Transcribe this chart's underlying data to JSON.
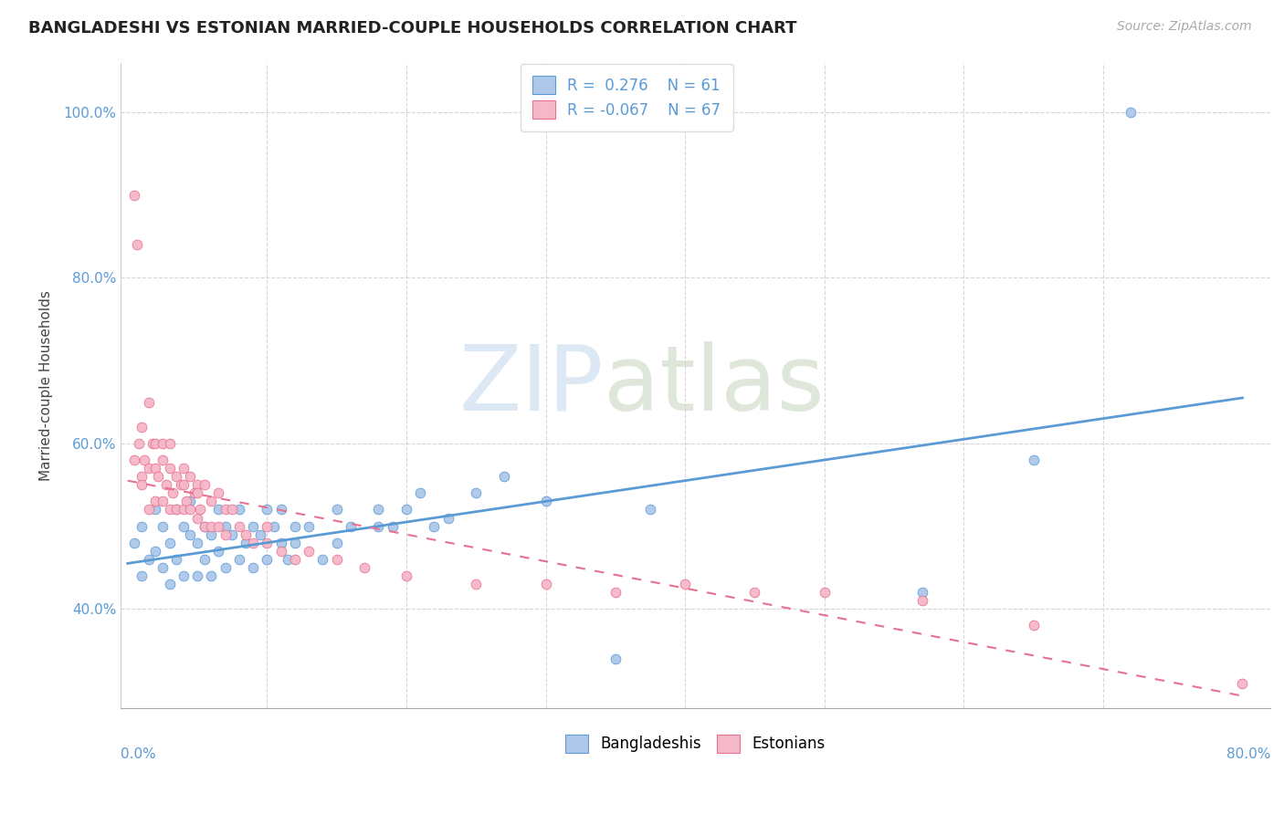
{
  "title": "BANGLADESHI VS ESTONIAN MARRIED-COUPLE HOUSEHOLDS CORRELATION CHART",
  "source": "Source: ZipAtlas.com",
  "ylabel": "Married-couple Households",
  "legend_label1": "Bangladeshis",
  "legend_label2": "Estonians",
  "R1": 0.276,
  "N1": 61,
  "R2": -0.067,
  "N2": 67,
  "color1": "#adc8e8",
  "color2": "#f5b8c8",
  "line_color1": "#5b9bd5",
  "line_color2": "#e87090",
  "watermark1": "ZIP",
  "watermark2": "atlas",
  "bg_color": "#ffffff",
  "ytick_labels": [
    "40.0%",
    "60.0%",
    "80.0%",
    "100.0%"
  ],
  "ytick_values": [
    0.4,
    0.6,
    0.8,
    1.0
  ],
  "xlim": [
    -0.005,
    0.82
  ],
  "ylim": [
    0.28,
    1.06
  ],
  "blue_trend_x": [
    0.0,
    0.8
  ],
  "blue_trend_y": [
    0.455,
    0.655
  ],
  "pink_trend_x": [
    0.0,
    0.8
  ],
  "pink_trend_y": [
    0.555,
    0.295
  ],
  "bd_x": [
    0.005,
    0.01,
    0.01,
    0.015,
    0.02,
    0.02,
    0.025,
    0.025,
    0.03,
    0.03,
    0.035,
    0.035,
    0.04,
    0.04,
    0.045,
    0.045,
    0.05,
    0.05,
    0.055,
    0.055,
    0.06,
    0.06,
    0.065,
    0.065,
    0.07,
    0.07,
    0.075,
    0.08,
    0.08,
    0.085,
    0.09,
    0.09,
    0.095,
    0.1,
    0.1,
    0.105,
    0.11,
    0.11,
    0.115,
    0.12,
    0.12,
    0.13,
    0.14,
    0.15,
    0.15,
    0.16,
    0.18,
    0.18,
    0.19,
    0.2,
    0.21,
    0.22,
    0.23,
    0.25,
    0.27,
    0.3,
    0.35,
    0.375,
    0.57,
    0.65,
    0.72
  ],
  "bd_y": [
    0.48,
    0.5,
    0.44,
    0.46,
    0.52,
    0.47,
    0.5,
    0.45,
    0.48,
    0.43,
    0.52,
    0.46,
    0.5,
    0.44,
    0.49,
    0.53,
    0.48,
    0.44,
    0.5,
    0.46,
    0.49,
    0.44,
    0.52,
    0.47,
    0.5,
    0.45,
    0.49,
    0.46,
    0.52,
    0.48,
    0.5,
    0.45,
    0.49,
    0.46,
    0.52,
    0.5,
    0.48,
    0.52,
    0.46,
    0.5,
    0.48,
    0.5,
    0.46,
    0.52,
    0.48,
    0.5,
    0.5,
    0.52,
    0.5,
    0.52,
    0.54,
    0.5,
    0.51,
    0.54,
    0.56,
    0.53,
    0.34,
    0.52,
    0.42,
    0.58,
    1.0
  ],
  "et_x": [
    0.005,
    0.005,
    0.007,
    0.008,
    0.01,
    0.01,
    0.01,
    0.012,
    0.015,
    0.015,
    0.015,
    0.018,
    0.02,
    0.02,
    0.02,
    0.022,
    0.025,
    0.025,
    0.025,
    0.028,
    0.03,
    0.03,
    0.03,
    0.032,
    0.035,
    0.035,
    0.038,
    0.04,
    0.04,
    0.04,
    0.042,
    0.045,
    0.045,
    0.048,
    0.05,
    0.05,
    0.05,
    0.052,
    0.055,
    0.055,
    0.06,
    0.06,
    0.065,
    0.065,
    0.07,
    0.07,
    0.075,
    0.08,
    0.085,
    0.09,
    0.1,
    0.1,
    0.11,
    0.12,
    0.13,
    0.15,
    0.17,
    0.2,
    0.25,
    0.3,
    0.35,
    0.4,
    0.45,
    0.5,
    0.57,
    0.65,
    0.8
  ],
  "et_y": [
    0.9,
    0.58,
    0.84,
    0.6,
    0.56,
    0.62,
    0.55,
    0.58,
    0.65,
    0.57,
    0.52,
    0.6,
    0.57,
    0.53,
    0.6,
    0.56,
    0.58,
    0.53,
    0.6,
    0.55,
    0.57,
    0.52,
    0.6,
    0.54,
    0.56,
    0.52,
    0.55,
    0.57,
    0.52,
    0.55,
    0.53,
    0.56,
    0.52,
    0.54,
    0.55,
    0.51,
    0.54,
    0.52,
    0.55,
    0.5,
    0.53,
    0.5,
    0.54,
    0.5,
    0.52,
    0.49,
    0.52,
    0.5,
    0.49,
    0.48,
    0.48,
    0.5,
    0.47,
    0.46,
    0.47,
    0.46,
    0.45,
    0.44,
    0.43,
    0.43,
    0.42,
    0.43,
    0.42,
    0.42,
    0.41,
    0.38,
    0.31
  ]
}
